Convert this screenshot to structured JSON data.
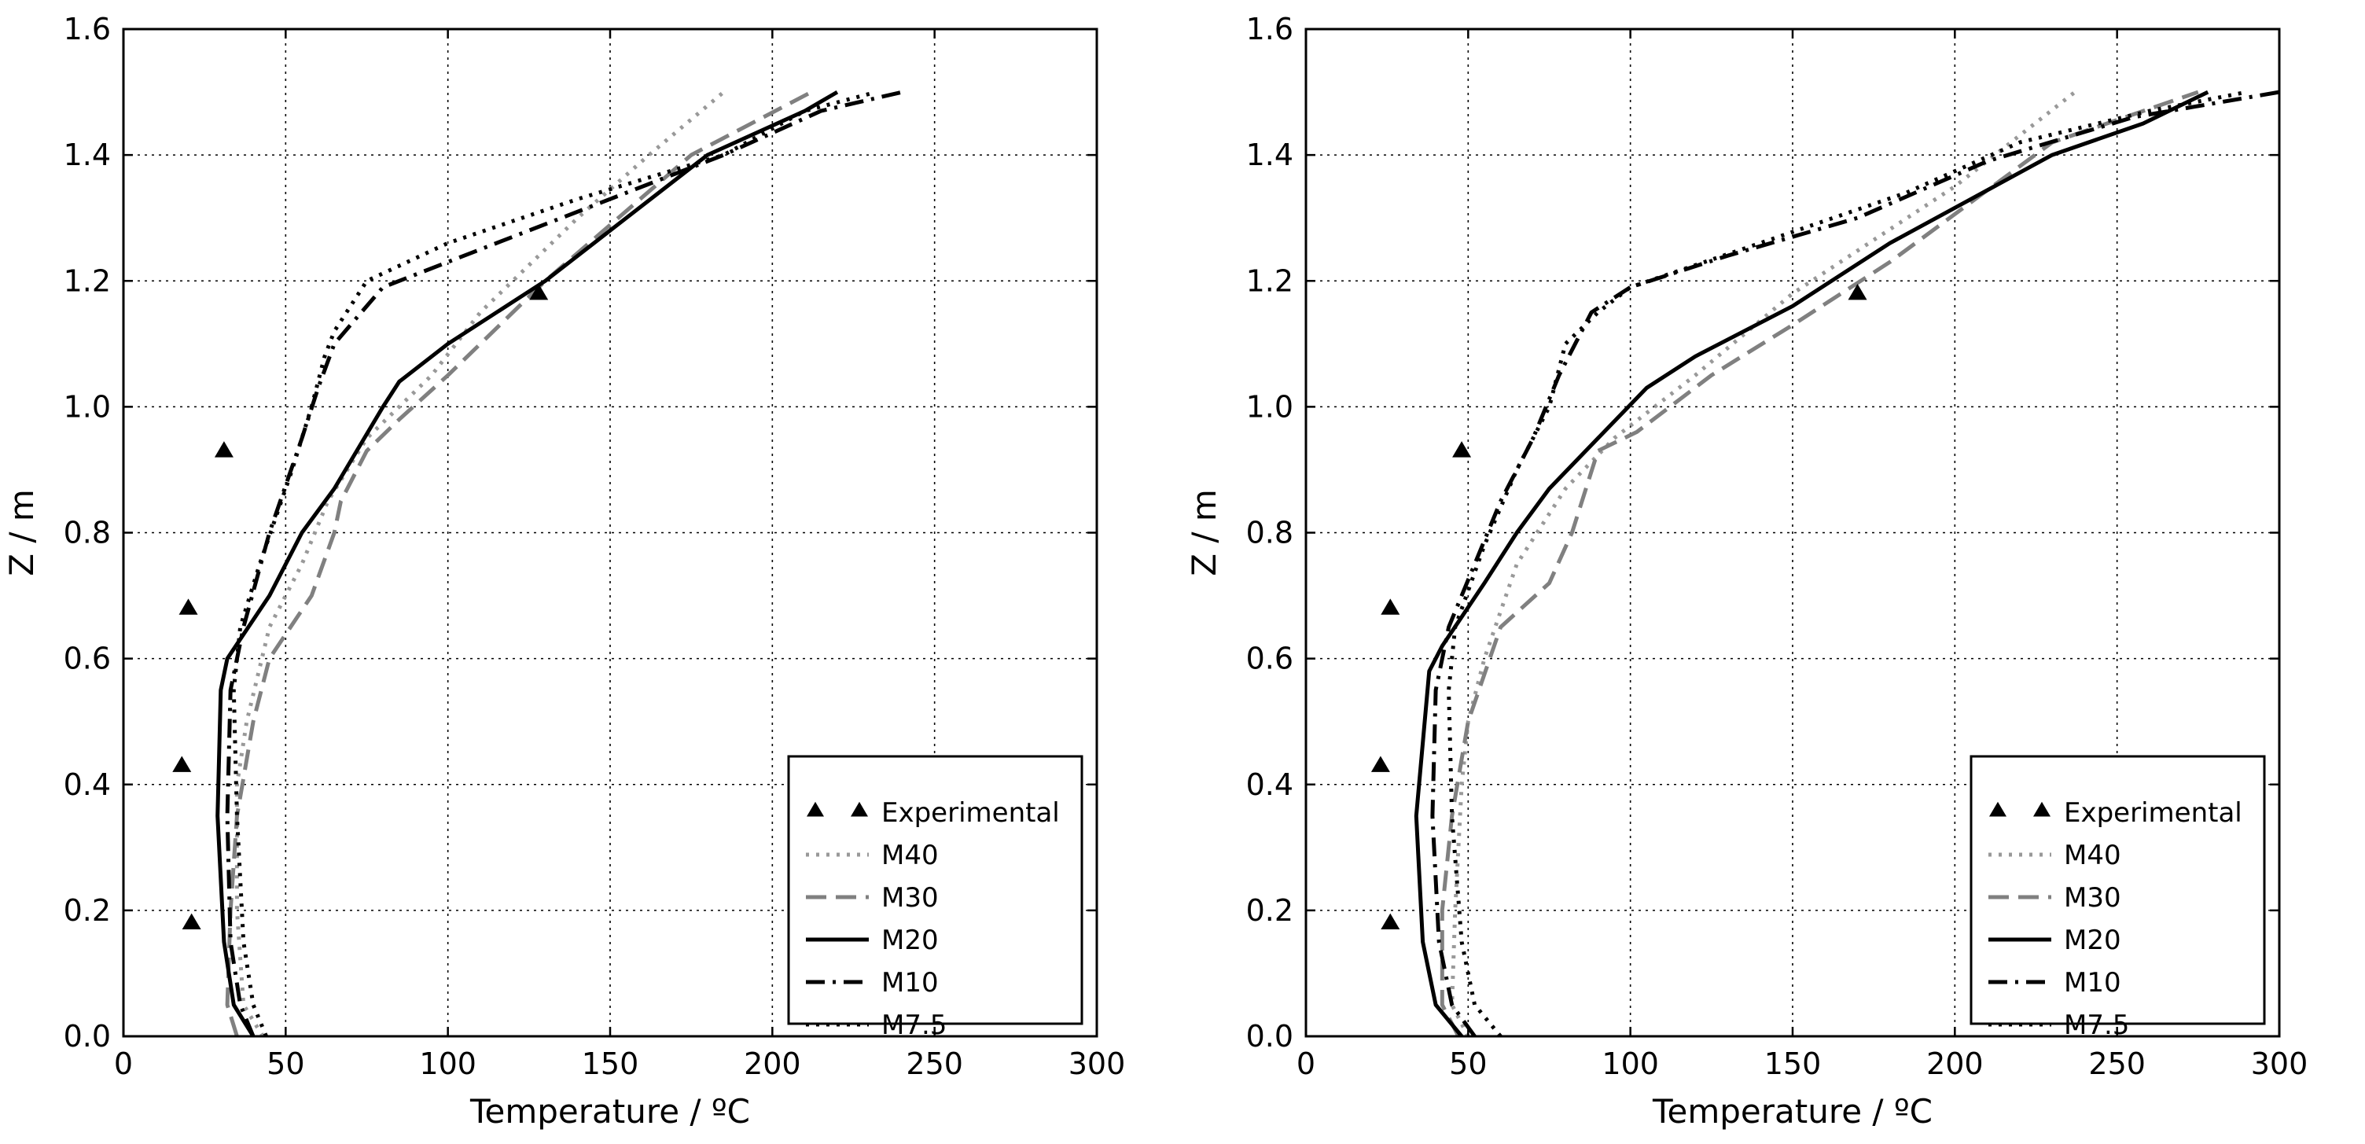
{
  "figure": {
    "panels": [
      "left",
      "right"
    ]
  },
  "chart_data": [
    {
      "type": "line",
      "xlabel": "Temperature / ºC",
      "ylabel": "Z / m",
      "xlim": [
        0,
        300
      ],
      "ylim": [
        0.0,
        1.6
      ],
      "xticks": [
        "0",
        "50",
        "100",
        "150",
        "200",
        "250",
        "300"
      ],
      "yticks": [
        "0.0",
        "0.2",
        "0.4",
        "0.6",
        "0.8",
        "1.0",
        "1.2",
        "1.4",
        "1.6"
      ],
      "grid": true,
      "legend_position": "lower-right",
      "legend": [
        "Experimental",
        "M40",
        "M30",
        "M20",
        "M10",
        "M7.5"
      ],
      "experimental": [
        {
          "x": 21,
          "y": 0.18
        },
        {
          "x": 18,
          "y": 0.43
        },
        {
          "x": 20,
          "y": 0.68
        },
        {
          "x": 31,
          "y": 0.93
        },
        {
          "x": 128,
          "y": 1.18
        }
      ],
      "series": [
        {
          "name": "M40",
          "style": "dotted",
          "color": "#999999",
          "points": [
            [
              43,
              0
            ],
            [
              37,
              0.05
            ],
            [
              35,
              0.2
            ],
            [
              35,
              0.4
            ],
            [
              38,
              0.5
            ],
            [
              45,
              0.65
            ],
            [
              55,
              0.75
            ],
            [
              63,
              0.85
            ],
            [
              75,
              0.95
            ],
            [
              95,
              1.05
            ],
            [
              110,
              1.15
            ],
            [
              140,
              1.3
            ],
            [
              162,
              1.4
            ],
            [
              185,
              1.5
            ]
          ]
        },
        {
          "name": "M30",
          "style": "dashed",
          "color": "#808080",
          "points": [
            [
              35,
              0
            ],
            [
              32,
              0.05
            ],
            [
              33,
              0.2
            ],
            [
              35,
              0.35
            ],
            [
              40,
              0.5
            ],
            [
              45,
              0.6
            ],
            [
              58,
              0.7
            ],
            [
              65,
              0.8
            ],
            [
              67,
              0.85
            ],
            [
              75,
              0.93
            ],
            [
              85,
              0.98
            ],
            [
              100,
              1.05
            ],
            [
              130,
              1.2
            ],
            [
              175,
              1.4
            ],
            [
              212,
              1.5
            ]
          ]
        },
        {
          "name": "M20",
          "style": "solid",
          "color": "#000000",
          "points": [
            [
              40,
              0
            ],
            [
              34,
              0.05
            ],
            [
              31,
              0.15
            ],
            [
              29,
              0.35
            ],
            [
              30,
              0.55
            ],
            [
              32,
              0.6
            ],
            [
              45,
              0.7
            ],
            [
              55,
              0.8
            ],
            [
              65,
              0.87
            ],
            [
              80,
              1.0
            ],
            [
              85,
              1.04
            ],
            [
              100,
              1.1
            ],
            [
              130,
              1.2
            ],
            [
              155,
              1.3
            ],
            [
              180,
              1.4
            ],
            [
              210,
              1.47
            ],
            [
              220,
              1.5
            ]
          ]
        },
        {
          "name": "M10",
          "style": "dashdot",
          "color": "#000000",
          "points": [
            [
              40,
              0
            ],
            [
              36,
              0.05
            ],
            [
              33,
              0.15
            ],
            [
              32,
              0.35
            ],
            [
              33,
              0.55
            ],
            [
              37,
              0.65
            ],
            [
              45,
              0.8
            ],
            [
              55,
              0.95
            ],
            [
              60,
              1.03
            ],
            [
              65,
              1.1
            ],
            [
              80,
              1.19
            ],
            [
              110,
              1.25
            ],
            [
              150,
              1.33
            ],
            [
              185,
              1.4
            ],
            [
              215,
              1.47
            ],
            [
              240,
              1.5
            ]
          ]
        },
        {
          "name": "M7.5",
          "style": "dotted",
          "color": "#000000",
          "points": [
            [
              44,
              0
            ],
            [
              40,
              0.05
            ],
            [
              37,
              0.15
            ],
            [
              35,
              0.35
            ],
            [
              34,
              0.55
            ],
            [
              36,
              0.65
            ],
            [
              42,
              0.75
            ],
            [
              52,
              0.9
            ],
            [
              58,
              1.0
            ],
            [
              62,
              1.08
            ],
            [
              65,
              1.12
            ],
            [
              75,
              1.2
            ],
            [
              100,
              1.26
            ],
            [
              140,
              1.33
            ],
            [
              185,
              1.4
            ],
            [
              210,
              1.47
            ],
            [
              232,
              1.5
            ]
          ]
        }
      ]
    },
    {
      "type": "line",
      "xlabel": "Temperature / ºC",
      "ylabel": "Z / m",
      "xlim": [
        0,
        300
      ],
      "ylim": [
        0.0,
        1.6
      ],
      "xticks": [
        "0",
        "50",
        "100",
        "150",
        "200",
        "250",
        "300"
      ],
      "yticks": [
        "0.0",
        "0.2",
        "0.4",
        "0.6",
        "0.8",
        "1.0",
        "1.2",
        "1.4",
        "1.6"
      ],
      "grid": true,
      "legend_position": "lower-right",
      "legend": [
        "Experimental",
        "M40",
        "M30",
        "M20",
        "M10",
        "M7.5"
      ],
      "experimental": [
        {
          "x": 26,
          "y": 0.18
        },
        {
          "x": 23,
          "y": 0.43
        },
        {
          "x": 26,
          "y": 0.68
        },
        {
          "x": 48,
          "y": 0.93
        },
        {
          "x": 170,
          "y": 1.18
        }
      ],
      "series": [
        {
          "name": "M40",
          "style": "dotted",
          "color": "#999999",
          "points": [
            [
              50,
              0
            ],
            [
              45,
              0.05
            ],
            [
              46,
              0.2
            ],
            [
              48,
              0.4
            ],
            [
              50,
              0.5
            ],
            [
              55,
              0.6
            ],
            [
              65,
              0.75
            ],
            [
              80,
              0.87
            ],
            [
              95,
              0.95
            ],
            [
              120,
              1.05
            ],
            [
              150,
              1.18
            ],
            [
              200,
              1.35
            ],
            [
              237,
              1.5
            ]
          ]
        },
        {
          "name": "M30",
          "style": "dashed",
          "color": "#808080",
          "points": [
            [
              47,
              0
            ],
            [
              42,
              0.05
            ],
            [
              42,
              0.2
            ],
            [
              45,
              0.35
            ],
            [
              50,
              0.5
            ],
            [
              60,
              0.65
            ],
            [
              75,
              0.72
            ],
            [
              82,
              0.8
            ],
            [
              90,
              0.93
            ],
            [
              102,
              0.96
            ],
            [
              125,
              1.05
            ],
            [
              150,
              1.13
            ],
            [
              180,
              1.23
            ],
            [
              230,
              1.42
            ],
            [
              275,
              1.5
            ]
          ]
        },
        {
          "name": "M20",
          "style": "solid",
          "color": "#000000",
          "points": [
            [
              48,
              0
            ],
            [
              40,
              0.05
            ],
            [
              36,
              0.15
            ],
            [
              34,
              0.35
            ],
            [
              38,
              0.58
            ],
            [
              42,
              0.62
            ],
            [
              55,
              0.72
            ],
            [
              65,
              0.8
            ],
            [
              75,
              0.87
            ],
            [
              90,
              0.95
            ],
            [
              105,
              1.03
            ],
            [
              120,
              1.08
            ],
            [
              150,
              1.16
            ],
            [
              180,
              1.26
            ],
            [
              230,
              1.4
            ],
            [
              258,
              1.45
            ],
            [
              278,
              1.5
            ]
          ]
        },
        {
          "name": "M10",
          "style": "dashdot",
          "color": "#000000",
          "points": [
            [
              52,
              0
            ],
            [
              45,
              0.05
            ],
            [
              41,
              0.15
            ],
            [
              39,
              0.35
            ],
            [
              40,
              0.55
            ],
            [
              44,
              0.65
            ],
            [
              52,
              0.75
            ],
            [
              60,
              0.85
            ],
            [
              70,
              0.95
            ],
            [
              78,
              1.05
            ],
            [
              88,
              1.15
            ],
            [
              100,
              1.19
            ],
            [
              130,
              1.24
            ],
            [
              170,
              1.3
            ],
            [
              210,
              1.39
            ],
            [
              255,
              1.46
            ],
            [
              300,
              1.5
            ]
          ]
        },
        {
          "name": "M7.5",
          "style": "dotted",
          "color": "#000000",
          "points": [
            [
              60,
              0
            ],
            [
              52,
              0.05
            ],
            [
              48,
              0.15
            ],
            [
              45,
              0.35
            ],
            [
              44,
              0.55
            ],
            [
              46,
              0.65
            ],
            [
              55,
              0.78
            ],
            [
              65,
              0.9
            ],
            [
              75,
              1.0
            ],
            [
              80,
              1.1
            ],
            [
              90,
              1.15
            ],
            [
              100,
              1.19
            ],
            [
              140,
              1.26
            ],
            [
              185,
              1.34
            ],
            [
              220,
              1.42
            ],
            [
              260,
              1.47
            ],
            [
              290,
              1.5
            ]
          ]
        }
      ]
    }
  ]
}
